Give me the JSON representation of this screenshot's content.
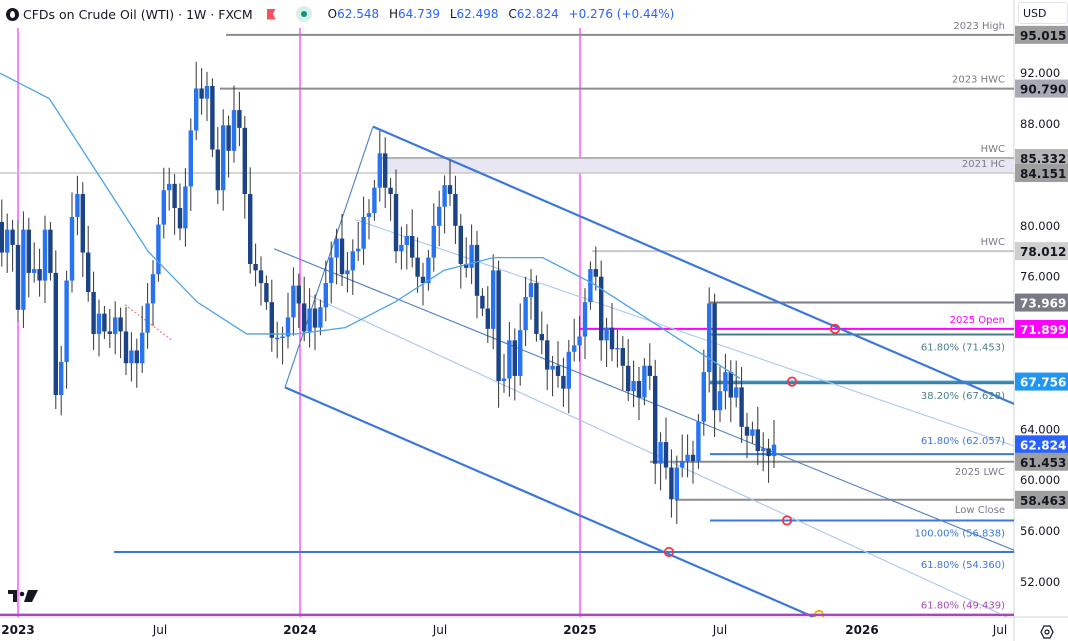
{
  "header": {
    "symbol_title": "CFDs on Crude Oil (WTI) · 1W · FXCM",
    "ohlc": {
      "open_label": "O",
      "open": "62.548",
      "high_label": "H",
      "high": "64.739",
      "low_label": "L",
      "low": "62.498",
      "close_label": "C",
      "close": "62.824",
      "change": "+0.276 (+0.44%)"
    },
    "icons": [
      "oil-drop-icon",
      "flag-icon",
      "market-status-dot-icon"
    ]
  },
  "price_axis": {
    "currency": "USD",
    "ticks": [
      "92.000",
      "88.000",
      "80.000",
      "76.000",
      "64.000",
      "60.000",
      "56.000",
      "52.000"
    ]
  },
  "time_axis": {
    "ticks": [
      "2023",
      "Jul",
      "2024",
      "Jul",
      "2025",
      "Jul",
      "2026",
      "Jul"
    ]
  },
  "colors": {
    "bull": "#2773f0",
    "bear": "#1b4385",
    "wick": "#333333",
    "ma": "#4da3e8",
    "channel": "#3c78d8",
    "channel_light": "#a9c7f0",
    "magenta": "#ff00ff",
    "purple": "#ab47bc",
    "teal": "#4a7f89",
    "gray": "#8c8c8c",
    "current_price_bg": "#2962ff",
    "level_67_bg": "#2196f3"
  },
  "chart_data": {
    "type": "candlestick",
    "title": "CFDs on Crude Oil (WTI) · 1W · FXCM",
    "xlabel": "",
    "ylabel": "USD",
    "ylim": [
      49.2,
      97.0
    ],
    "x_range": [
      "2022-12",
      "2026-07"
    ],
    "grid": false,
    "last_bar": {
      "open": 62.548,
      "high": 64.739,
      "low": 62.498,
      "close": 62.824,
      "change": 0.276,
      "change_pct": 0.44
    },
    "horizontal_levels": [
      {
        "price": 95.015,
        "label": "2023 High",
        "axis_label": "95.015",
        "color": "#8c8c8c"
      },
      {
        "price": 90.79,
        "label": "2023 HWC",
        "axis_label": "90.790",
        "color": "#8c8c8c"
      },
      {
        "price": 85.332,
        "label": "HWC",
        "axis_label": "85.332",
        "color": "#b4b4b4"
      },
      {
        "price": 84.151,
        "label": "2021 HC",
        "axis_label": "84.151",
        "color": "#c8c8c8"
      },
      {
        "price": 78.012,
        "label": "HWC",
        "axis_label": "78.012",
        "color": "#c8c8c8"
      },
      {
        "price": 73.969,
        "label": "",
        "axis_label": "73.969",
        "color": "#787b86"
      },
      {
        "price": 71.899,
        "label": "2025 Open",
        "axis_label": "71.899",
        "color": "#ff00ff"
      },
      {
        "price": 71.453,
        "label": "61.80% (71.453)",
        "axis_label": "",
        "color": "#4a7f89"
      },
      {
        "price": 67.756,
        "label": "",
        "axis_label": "67.756",
        "color": "#2196f3"
      },
      {
        "price": 67.628,
        "label": "38.20% (67.628)",
        "axis_label": "",
        "color": "#4a7f89"
      },
      {
        "price": 62.824,
        "label": "",
        "axis_label": "62.824",
        "color": "#2962ff"
      },
      {
        "price": 62.057,
        "label": "61.80% (62.057)",
        "axis_label": "",
        "color": "#3c78d8"
      },
      {
        "price": 61.453,
        "label": "2025 LWC",
        "axis_label": "61.453",
        "color": "#8c8c8c"
      },
      {
        "price": 58.463,
        "label": "Low Close",
        "axis_label": "58.463",
        "color": "#8c8c8c"
      },
      {
        "price": 56.838,
        "label": "100.00% (56.838)",
        "axis_label": "",
        "color": "#3c78d8"
      },
      {
        "price": 54.36,
        "label": "61.80% (54.360)",
        "axis_label": "",
        "color": "#3c78d8"
      },
      {
        "price": 49.439,
        "label": "61.80% (49.439)",
        "axis_label": "",
        "color": "#ab47bc"
      }
    ],
    "zones": [
      {
        "from": 84.151,
        "to": 85.332,
        "color": "#e8e6f3"
      }
    ],
    "vertical_markers": [
      "2023-01",
      "2024-01",
      "2025-01"
    ],
    "descending_channel": {
      "upper": {
        "start": [
          "2023-09-25",
          87.8
        ],
        "end": [
          "2026-06",
          66.0
        ]
      },
      "lower": {
        "start": [
          "2023-12-11",
          67.3
        ],
        "end": [
          "2025-11",
          49.4
        ]
      }
    },
    "series": [
      {
        "name": "WTI weekly close (approx)",
        "values": [
          80.3,
          77.9,
          79.7,
          78.5,
          73.4,
          79.7,
          76.3,
          76.6,
          75.7,
          79.7,
          76.3,
          66.7,
          69.3,
          75.7,
          80.7,
          82.5,
          77.9,
          74.8,
          71.5,
          73.1,
          71.7,
          71.5,
          72.8,
          71.7,
          69.2,
          70.2,
          69.2,
          71.6,
          73.9,
          76.2,
          80.1,
          82.8,
          83.3,
          81.4,
          79.8,
          83.1,
          87.5,
          90.8,
          90.0,
          91.0,
          86.0,
          82.8,
          87.9,
          85.9,
          89.1,
          87.7,
          82.5,
          77.0,
          76.5,
          75.5,
          74.0,
          71.2,
          71.2,
          71.3,
          72.8,
          75.3,
          73.9,
          71.7,
          73.5,
          72.0,
          73.6,
          75.5,
          77.5,
          79.0,
          76.2,
          76.5,
          78.0,
          78.2,
          80.7,
          81.0,
          83.0,
          85.7,
          83.0,
          82.5,
          78.0,
          78.5,
          79.2,
          77.5,
          76.0,
          75.5,
          77.5,
          80.0,
          81.5,
          83.2,
          82.5,
          80.0,
          77.0,
          76.7,
          78.5,
          74.5,
          73.5,
          71.9,
          76.5,
          67.8,
          68.0,
          71.0,
          68.2,
          71.8,
          74.4,
          75.5,
          71.5,
          71.0,
          68.7,
          69.0,
          68.2,
          67.2,
          70.1,
          70.6,
          71.3,
          74.0,
          76.6,
          76.0,
          71.0,
          72.0,
          70.3,
          70.4,
          69.0,
          67.0,
          67.8,
          66.5,
          69.0,
          68.2,
          61.3,
          63.0,
          61.0,
          58.5,
          61.0,
          61.5,
          62.0,
          61.5,
          64.6,
          68.5,
          73.9,
          65.5,
          67.0,
          68.5,
          66.5,
          67.3,
          64.2,
          63.5,
          64.0,
          62.3,
          62.5,
          61.9,
          62.8
        ]
      },
      {
        "name": "Moving average (approx)",
        "values": [
          92.0,
          90.0,
          84.0,
          78.0,
          74.0,
          71.5,
          71.5,
          72.0,
          74.0,
          76.5,
          77.5,
          77.5,
          75.5,
          73.0,
          70.5,
          68.0
        ]
      }
    ],
    "markers": [
      {
        "type": "circle",
        "x": "2025-08",
        "price": 71.899,
        "color": "#f23645"
      },
      {
        "type": "circle",
        "x": "2025-08",
        "price": 67.756,
        "color": "#f23645"
      },
      {
        "type": "circle",
        "x": "2025-04",
        "price": 54.36,
        "color": "#f23645"
      },
      {
        "type": "circle",
        "x": "2025-09",
        "price": 56.838,
        "color": "#f23645"
      },
      {
        "type": "circle",
        "x": "2025-11",
        "price": 49.439,
        "color": "#f7a600"
      }
    ]
  }
}
